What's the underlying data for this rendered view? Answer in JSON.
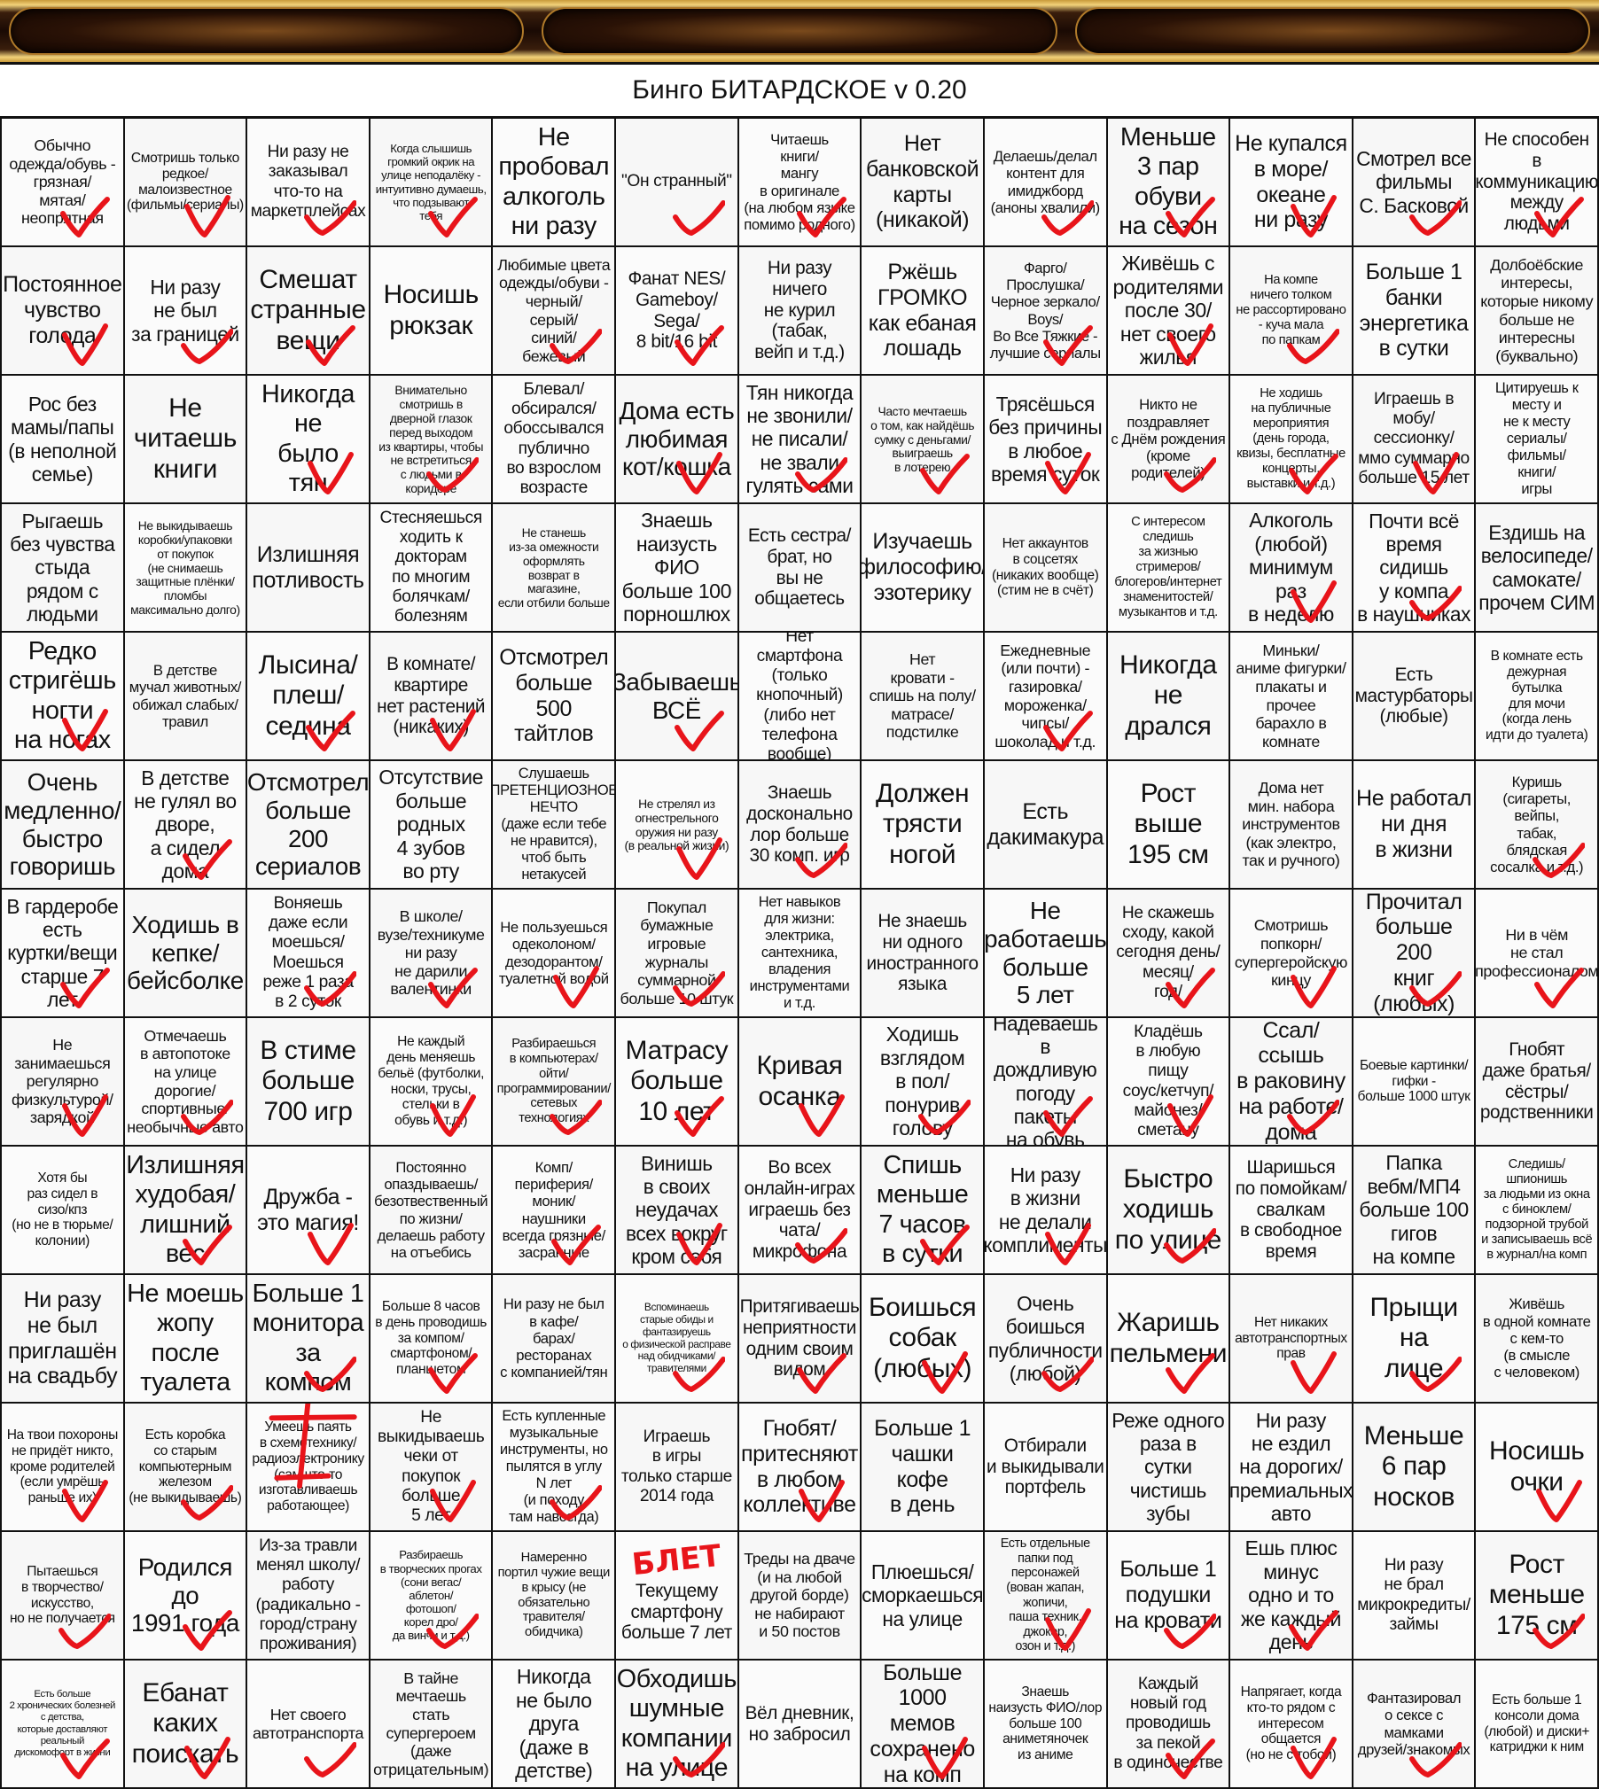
{
  "title": "Бинго БИТАРДСКОЕ v 0.20",
  "colors": {
    "mark": "#e8141a",
    "grid": "#111111"
  },
  "grid": {
    "rows": [
      [
        {
          "t": "Обычно\nодежда/обувь -\nгрязная/\nмятая/\nнеопрятная",
          "m": 1
        },
        {
          "t": "Смотришь только\nредкое/\nмалоизвестное\n(фильмы/сериалы)",
          "m": 1
        },
        {
          "t": "Ни разу не\nзаказывал\nчто-то на\nмаркетплейсах",
          "m": 1
        },
        {
          "t": "Когда слышишь\nгромкий окрик на\nулице неподалёку -\nинтуитивно думаешь,\nчто подзывают\nтебя",
          "m": 1
        },
        {
          "t": "Не\nпробовал\nалкоголь\nни разу",
          "m": 0
        },
        {
          "t": "\"Он странный\"",
          "m": 1
        },
        {
          "t": "Читаешь\nкниги/\nмангу\nв оригинале\n(на любом языке\nпомимо родного)",
          "m": 1
        },
        {
          "t": "Нет\nбанковской\nкарты\n(никакой)",
          "m": 0
        },
        {
          "t": "Делаешь/делал\nконтент для\nимиджборд\n(аноны хвалили)",
          "m": 1
        },
        {
          "t": "Меньше\n3 пар\nобуви\nна сезон",
          "m": 1
        },
        {
          "t": "Не купался\nв море/\nокеане\nни разу",
          "m": 1
        },
        {
          "t": "Смотрел все\nфильмы\nС. Басковой",
          "m": 1
        },
        {
          "t": "Не способен\nв\nкоммуникацию\nмежду людьми",
          "m": 1
        }
      ],
      [
        {
          "t": "Постоянное\nчувство\nголода",
          "m": 1
        },
        {
          "t": "Ни разу\nне был\nза границей",
          "m": 1
        },
        {
          "t": "Смешат\nстранные\nвещи",
          "m": 1
        },
        {
          "t": "Носишь\nрюкзак",
          "m": 0
        },
        {
          "t": "Любимые цвета\nодежды/обуви -\nчерный/\nсерый/\nсиний/\nбежевый",
          "m": 1
        },
        {
          "t": "Фанат NES/\nGameboy/\nSega/\n8 bit/16 bit",
          "m": 1
        },
        {
          "t": "Ни разу\nничего\nне курил\n(табак,\nвейп и т.д.)",
          "m": 0
        },
        {
          "t": "Ржёшь\nГРОМКО\nкак ебаная\nлошадь",
          "m": 0
        },
        {
          "t": "Фарго/\nПрослушка/\nЧерное зеркало/\nBoys/\nВо Все Тяжкие -\nлучшие сериалы",
          "m": 1
        },
        {
          "t": "Живёшь с\nродителями\nпосле 30/\nнет своего\nжилья",
          "m": 1
        },
        {
          "t": "На компе\nничего толком\nне рассортировано\n- куча мала\nпо папкам",
          "m": 1
        },
        {
          "t": "Больше 1\nбанки\nэнергетика\nв сутки",
          "m": 0
        },
        {
          "t": "Долбоёбские\nинтересы,\nкоторые никому\nбольше не\nинтересны\n(буквально)",
          "m": 0
        }
      ],
      [
        {
          "t": "Рос без\nмамы/папы\n(в неполной\nсемье)",
          "m": 0
        },
        {
          "t": "Не\nчитаешь\nкниги",
          "m": 0
        },
        {
          "t": "Никогда\nне\nбыло\nтян",
          "m": 1
        },
        {
          "t": "Внимательно\nсмотришь в\nдверной глазок\nперед выходом\nиз квартиры, чтобы\nне встретиться\nс людьми в\nкоридоре",
          "m": 1
        },
        {
          "t": "Блевал/\nобсирался/\nобоссывался\nпублично\nво взрослом\nвозрасте",
          "m": 0
        },
        {
          "t": "Дома есть\nлюбимая\nкот/кошка",
          "m": 1
        },
        {
          "t": "Тян никогда\nне звонили/\nне писали/\nне звали\nгулять сами",
          "m": 1
        },
        {
          "t": "Часто мечтаешь\nо том, как найдёшь\nсумку с деньгами/\nвыиграешь\nв лотерею",
          "m": 1
        },
        {
          "t": "Трясёшься\nбез причины\nв любое\nвремя суток",
          "m": 1
        },
        {
          "t": "Никто не\nпоздравляет\nс Днём рождения\n(кроме\nродителей)",
          "m": 1
        },
        {
          "t": "Не ходишь\nна публичные\nмероприятия\n(день города,\nквизы, бесплатные\nконцерты,\nвыставки и т.д.)",
          "m": 1
        },
        {
          "t": "Играешь в\nмобу/\nсессионку/\nммо суммарно\nбольше 15 лет",
          "m": 1
        },
        {
          "t": "Цитируешь к\nместу и\nне к месту\nсериалы/\nфильмы/\nкниги/\nигры",
          "m": 0
        }
      ],
      [
        {
          "t": "Рыгаешь\nбез чувства\nстыда\nрядом с\nлюдьми",
          "m": 0
        },
        {
          "t": "Не выкидываешь\nкоробки/упаковки\nот покупок\n(не снимаешь\nзащитные плёнки/\nпломбы\nмаксимально долго)",
          "m": 0
        },
        {
          "t": "Излишняя\nпотливость",
          "m": 0
        },
        {
          "t": "Стесняешься\nходить к\nдокторам\nпо многим\nболячкам/\nболезням",
          "m": 0
        },
        {
          "t": "Не станешь\nиз-за омежности\nоформлять\nвозврат в\nмагазине,\nесли отбили больше",
          "m": 0
        },
        {
          "t": "Знаешь\nнаизусть\nФИО\nбольше 100\nпорношлюх",
          "m": 0
        },
        {
          "t": "Есть сестра/\nбрат, но\nвы не\nобщаетесь",
          "m": 0
        },
        {
          "t": "Изучаешь\nфилософию/\nэзотерику",
          "m": 0
        },
        {
          "t": "Нет аккаунтов\nв соцсетях\n(никаких вообще)\n(стим не в счёт)",
          "m": 0
        },
        {
          "t": "С интересом\nследишь\nза жизнью\nстримеров/\nблогеров/интернет\nзнаменитостей/\nмузыкантов и т.д.",
          "m": 0
        },
        {
          "t": "Алкоголь\n(любой)\nминимум\nраз\nв неделю",
          "m": 1
        },
        {
          "t": "Почти всё\nвремя\nсидишь\nу компа\nв наушниках",
          "m": 1
        },
        {
          "t": "Ездишь на\nвелосипеде/\nсамокате/\nпрочем СИМ",
          "m": 0
        }
      ],
      [
        {
          "t": "Редко\nстригёшь\nногти\nна ногах",
          "m": 1
        },
        {
          "t": "В детстве\nмучал животных/\nобижал слабых/\nтравил",
          "m": 0
        },
        {
          "t": "Лысина/\nплеш/\nседина",
          "m": 1
        },
        {
          "t": "В комнате/\nквартире\nнет растений\n(никаких)",
          "m": 1
        },
        {
          "t": "Отсмотрел\nбольше 500\nтайтлов",
          "m": 0
        },
        {
          "t": "Забываешь\nВСЁ",
          "m": 1
        },
        {
          "t": "Нет смартфона\n(только\nкнопочный)\n(либо нет\nтелефона\nвообще)",
          "m": 0
        },
        {
          "t": "Нет\nкровати -\nспишь на полу/\nматрасе/\nподстилке",
          "m": 0
        },
        {
          "t": "Ежедневные\n(или почти) -\nгазировка/\nмороженка/\nчипсы/\nшоколад и т.д.",
          "m": 1
        },
        {
          "t": "Никогда\nне\nдрался",
          "m": 0
        },
        {
          "t": "Миньки/\nаниме фигурки/\nплакаты и\nпрочее\nбарахло в\nкомнате",
          "m": 0
        },
        {
          "t": "Есть\nмастурбаторы\n(любые)",
          "m": 0
        },
        {
          "t": "В комнате есть\nдежурная\nбутылка\nдля мочи\n(когда лень\nидти до туалета)",
          "m": 0
        }
      ],
      [
        {
          "t": "Очень\nмедленно/\nбыстро\nговоришь",
          "m": 0
        },
        {
          "t": "В детстве\nне гулял во\nдворе,\nа сидел\nдома",
          "m": 1
        },
        {
          "t": "Отсмотрел\nбольше\n200\nсериалов",
          "m": 0
        },
        {
          "t": "Отсутствие\nбольше\nродных\n4 зубов\nво рту",
          "m": 0
        },
        {
          "t": "Слушаешь\nПРЕТЕНЦИОЗНОЕ\nНЕЧТО\n(даже если тебе\nне нравится),\nчтоб быть\nнетакусей",
          "m": 0
        },
        {
          "t": "Не стрелял из\nогнестрельного\nоружия ни разу\n(в реальной жизни)",
          "m": 1
        },
        {
          "t": "Знаешь\nдосконально\nлор больше\n30 комп. игр",
          "m": 1
        },
        {
          "t": "Должен\nтрясти\nногой",
          "m": 0
        },
        {
          "t": "Есть\nдакимакура",
          "m": 0
        },
        {
          "t": "Рост\nвыше\n195 см",
          "m": 0
        },
        {
          "t": "Дома нет\nмин. набора\nинструментов\n(как электро,\nтак и ручного)",
          "m": 0
        },
        {
          "t": "Не работал\nни дня\nв жизни",
          "m": 0
        },
        {
          "t": "Куришь\n(сигареты,\nвейпы,\nтабак,\nблядская\nсосалка и т.д.)",
          "m": 1
        }
      ],
      [
        {
          "t": "В гардеробе\nесть\nкуртки/вещи\nстарше 7\nлет",
          "m": 1
        },
        {
          "t": "Ходишь в\nкепке/\nбейсболке",
          "m": 0
        },
        {
          "t": "Воняешь\nдаже если\nмоешься/\nМоешься\nреже 1 раза\nв 2 суток",
          "m": 1
        },
        {
          "t": "В школе/\nвузе/техникуме\nни разу\nне дарили\nвалентинки",
          "m": 1
        },
        {
          "t": "Не пользуешься\nодеколоном/\nдезодорантом/\nтуалетной водой",
          "m": 1
        },
        {
          "t": "Покупал\nбумажные\nигровые\nжурналы\nсуммарной\nбольше 10 штук",
          "m": 1
        },
        {
          "t": "Нет навыков\nдля жизни:\nэлектрика,\nсантехника,\nвладения\nинструментами\nи т.д.",
          "m": 0
        },
        {
          "t": "Не знаешь\nни одного\nиностранного\nязыка",
          "m": 0
        },
        {
          "t": "Не\nработаешь\nбольше\n5 лет",
          "m": 0
        },
        {
          "t": "Не скажешь\nсходу, какой\nсегодня день/\nмесяц/\nгод/",
          "m": 1
        },
        {
          "t": "Смотришь\nпопкорн/\nсупергеройскую\nкинцу",
          "m": 1
        },
        {
          "t": "Прочитал\nбольше 200\nкниг\n(любых)",
          "m": 1
        },
        {
          "t": "Ни в чём\nне стал\nпрофессионалом",
          "m": 1
        }
      ],
      [
        {
          "t": "Не занимаешься\nрегулярно\nфизкультурой/\nзарядкой",
          "m": 1
        },
        {
          "t": "Отмечаешь\nв автопотоке\nна улице\nдорогие/\nспортивные/\nнеобычные авто",
          "m": 1
        },
        {
          "t": "В стиме\nбольше\n700 игр",
          "m": 0
        },
        {
          "t": "Не каждый\nдень меняешь\nбельё (футболки,\nноски, трусы,\nстельки в\nобувь и т.д.)",
          "m": 1
        },
        {
          "t": "Разбираешься\nв компьютерах/\nойти/\nпрограммировании/\nсетевых\nтехнологиях",
          "m": 1
        },
        {
          "t": "Матрасу\nбольше\n10 лет",
          "m": 1
        },
        {
          "t": "Кривая\nосанка",
          "m": 1
        },
        {
          "t": "Ходишь\nвзглядом\nв пол/\nпонурив\nголову",
          "m": 1
        },
        {
          "t": "Надеваешь\nв дождливую\nпогоду\nпакеты\nна обувь",
          "m": 1
        },
        {
          "t": "Кладёшь\nв любую\nпищу\nсоус/кетчуп/\nмайонез/\nсметану",
          "m": 1
        },
        {
          "t": "Ссал/ссышь\nв раковину\nна работе/\nдома",
          "m": 1
        },
        {
          "t": "Боевые картинки/\nгифки -\nбольше 1000 штук",
          "m": 0
        },
        {
          "t": "Гнобят\nдаже братья/\nсёстры/\nродственники",
          "m": 0
        }
      ],
      [
        {
          "t": "Хотя бы\nраз сидел в\nсизо/кпз\n(но не в тюрьме/\nколонии)",
          "m": 0
        },
        {
          "t": "Излишняя\nхудобая/\nлишний\nвес",
          "m": 1
        },
        {
          "t": "Дружба -\nэто магия!",
          "m": 1
        },
        {
          "t": "Постоянно\nопаздываешь/\nбезотвественный\nпо жизни/\nделаешь работу\nна отъебись",
          "m": 0
        },
        {
          "t": "Комп/\nпериферия/\nмоник/\nнаушники\nвсегда грязные/\nзасранные",
          "m": 1
        },
        {
          "t": "Винишь\nв своих\nнеудачах\nвсех вокруг\nкром себя",
          "m": 1
        },
        {
          "t": "Во всех\nонлайн-играх\nиграешь без\nчата/\nмикрофона",
          "m": 1
        },
        {
          "t": "Спишь\nменьше\n7 часов\nв сутки",
          "m": 1
        },
        {
          "t": "Ни разу\nв жизни\nне делали\nкомплименты",
          "m": 1
        },
        {
          "t": "Быстро\nходишь\nпо улице",
          "m": 1
        },
        {
          "t": "Шаришься\nпо помойкам/\nсвалкам\nв свободное\nвремя",
          "m": 0
        },
        {
          "t": "Папка\nвебм/МП4\nбольше 100\nгигов\nна компе",
          "m": 0
        },
        {
          "t": "Следишь/шпионишь\nза людьми из окна\nс биноклем/\nподзорной трубой\nи записываешь всё\nв журнал/на комп",
          "m": 0
        }
      ],
      [
        {
          "t": "Ни разу\nне был\nприглашён\nна свадьбу",
          "m": 0
        },
        {
          "t": "Не моешь\nжопу\nпосле\nтуалета",
          "m": 0
        },
        {
          "t": "Больше 1\nмонитора\nза\nкомпом",
          "m": 1
        },
        {
          "t": "Больше 8 часов\nв день проводишь\nза компом/\nсмартфоном/\nпланшетом",
          "m": 1
        },
        {
          "t": "Ни разу не был\nв кафе/\nбарах/\nресторанах\nс компанией/тян",
          "m": 0
        },
        {
          "t": "Вспоминаешь\nстарые обиды и\nфантазируешь\nо физической расправе\nнад обидчиками/\nтравителями",
          "m": 1
        },
        {
          "t": "Притягиваешь\nнеприятности\nодним своим\nвидом",
          "m": 1
        },
        {
          "t": "Боишься\nсобак\n(любых)",
          "m": 1
        },
        {
          "t": "Очень\nбоишься\nпубличности\n(любой)",
          "m": 1
        },
        {
          "t": "Жаришь\nпельмени",
          "m": 1
        },
        {
          "t": "Нет никаких\nавтотранспортных\nправ",
          "m": 1
        },
        {
          "t": "Прыщи\nна\nлице",
          "m": 1
        },
        {
          "t": "Живёшь\nв одной комнате\nс кем-то\n(в смысле\nс человеком)",
          "m": 0
        }
      ],
      [
        {
          "t": "На твои похороны\nне придёт никто,\nкроме родителей\n(если умрёшь\nраньше их)",
          "m": 1
        },
        {
          "t": "Есть коробка\nсо старым\nкомпьютерным\nжелезом\n(не выкидываешь)",
          "m": 1
        },
        {
          "t": "Умеешь паять\nв схемотехнику/\nрадиоэлектронику\n(сам что-то\nизготавливаешь\nработающее)",
          "m": 0,
          "crossed": 1
        },
        {
          "t": "Не\nвыкидываешь\nчеки от\nпокупок\nбольше\n5 лет",
          "m": 1
        },
        {
          "t": "Есть купленные\nмузыкальные\nинструменты, но\nпылятся в углу\nN лет\n(и походу\nтам навсегда)",
          "m": 1
        },
        {
          "t": "Играешь\nв игры\nтолько старше\n2014 года",
          "m": 0
        },
        {
          "t": "Гнобят/\nпритесняют\nв любом\nколлективе",
          "m": 1
        },
        {
          "t": "Больше 1\nчашки кофе\nв день",
          "m": 0
        },
        {
          "t": "Отбирали\nи выкидывали\nпортфель",
          "m": 0
        },
        {
          "t": "Реже одного\nраза в\nсутки\nчистишь\nзубы",
          "m": 0
        },
        {
          "t": "Ни разу\nне ездил\nна дорогих/\nпремиальных\nавто",
          "m": 0
        },
        {
          "t": "Меньше\n6 пар\nносков",
          "m": 0
        },
        {
          "t": "Носишь\nочки",
          "m": 1
        }
      ],
      [
        {
          "t": "Пытаешься\nв творчество/\nискусство,\nно не получается",
          "m": 1
        },
        {
          "t": "Родился\nдо\n1991 года",
          "m": 1
        },
        {
          "t": "Из-за травли\nменял школу/\nработу\n(радикально -\nгород/страну\nпроживания)",
          "m": 0
        },
        {
          "t": "Разбираешь\nв творческих прогах\n(сони вегас/\nаблетон/\nфотошоп/\nкорел дро/\nда винчи и т.д.)",
          "m": 1
        },
        {
          "t": "Намеренно\nпортил чужие вещи\nв крысу (не\nобязательно\nтравителя/\nобидчика)",
          "m": 0
        },
        {
          "t": "Текущему\nсмартфону\nбольше 7 лет",
          "m": 0,
          "note": "БЛЕТ"
        },
        {
          "t": "Треды на дваче\n(и на любой\nдругой борде)\nне набирают\nи 50 постов",
          "m": 0
        },
        {
          "t": "Плюешься/\nсморкаешься\nна улице",
          "m": 0
        },
        {
          "t": "Есть отдельные\nпапки под\nперсонажей\n(вован жапан,\nжопичи,\nпаша техник,\nджокер,\nозон и т.д.)",
          "m": 1
        },
        {
          "t": "Больше 1\nподушки\nна кровати",
          "m": 1
        },
        {
          "t": "Ешь плюс\nминус\nодно и то\nже каждый\nдень",
          "m": 1
        },
        {
          "t": "Ни разу\nне брал\nмикрокредиты/\nзаймы",
          "m": 0
        },
        {
          "t": "Рост\nменьше\n175 см",
          "m": 1
        }
      ],
      [
        {
          "t": "Есть больше\n2 хронических болезней\nс детства,\nкоторые доставляют\nреальный\nдискомофорт в жизни",
          "m": 1
        },
        {
          "t": "Ебанат\nкаких\nпоискать",
          "m": 1
        },
        {
          "t": "Нет своего\nавтотранспорта",
          "m": 1
        },
        {
          "t": "В тайне\nмечтаешь\nстать\nсупергероем\n(даже\nотрицательным)",
          "m": 0
        },
        {
          "t": "Никогда\nне было\nдруга\n(даже в\nдетстве)",
          "m": 0
        },
        {
          "t": "Обходишь\nшумные\nкомпании\nна улице",
          "m": 1
        },
        {
          "t": "Вёл дневник,\nно забросил",
          "m": 0
        },
        {
          "t": "Больше\n1000 мемов\nсохранено\nна комп",
          "m": 1
        },
        {
          "t": "Знаешь\nнаизусть ФИО/лор\nбольше 100\nаниметяночек\nиз аниме",
          "m": 0
        },
        {
          "t": "Каждый\nновый год\nпроводишь\nза пекой\nв одиночестве",
          "m": 1
        },
        {
          "t": "Напрягает, когда\nкто-то рядом с\nинтересом\nобщается\n(но не с тобой)",
          "m": 1
        },
        {
          "t": "Фантазировал\nо сексе с\nмамками\nдрузей/знакомых",
          "m": 1
        },
        {
          "t": "Есть больше 1\nконсоли дома\n(любой) и диски+\nкатриджи к ним",
          "m": 0
        }
      ]
    ]
  }
}
